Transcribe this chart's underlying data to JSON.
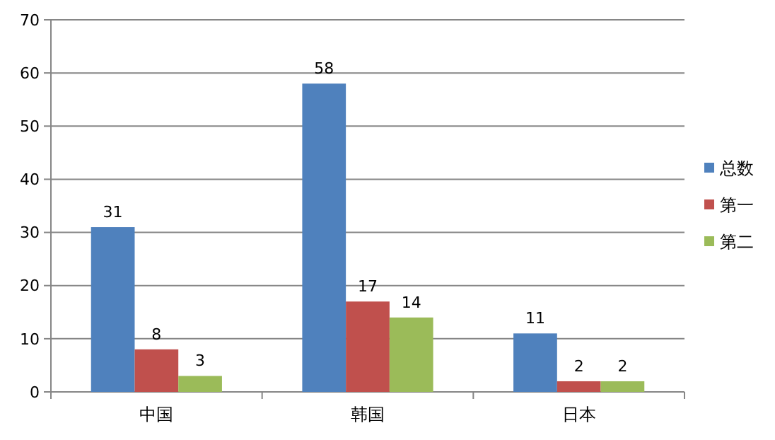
{
  "chart_data": {
    "type": "bar",
    "categories": [
      "中国",
      "韩国",
      "日本"
    ],
    "series": [
      {
        "name": "总数",
        "color": "#4f81bd",
        "values": [
          31,
          58,
          11
        ]
      },
      {
        "name": "第一",
        "color": "#c0504d",
        "values": [
          8,
          17,
          2
        ]
      },
      {
        "name": "第二",
        "color": "#9bbb59",
        "values": [
          3,
          14,
          2
        ]
      }
    ],
    "ylim": [
      0,
      70
    ],
    "yticks": [
      0,
      10,
      20,
      30,
      40,
      50,
      60,
      70
    ],
    "grid": "y",
    "legend": "right",
    "data_labels": true
  }
}
